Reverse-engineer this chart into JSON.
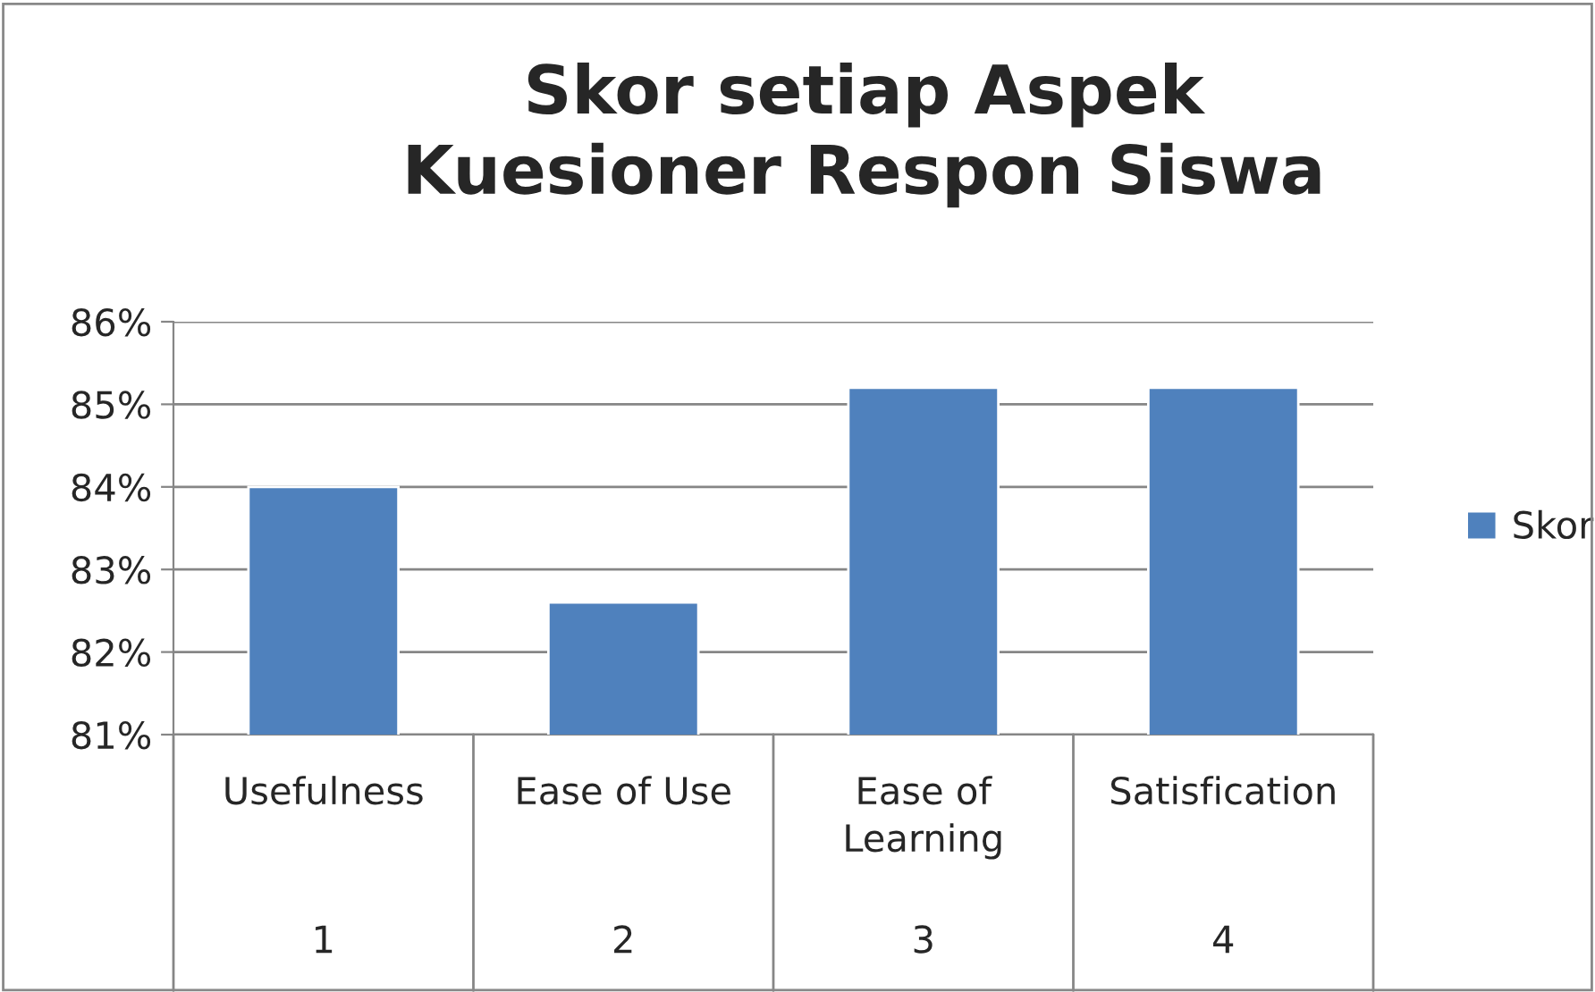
{
  "chart_data": {
    "type": "bar",
    "title": "Skor setiap Aspek\nKuesioner Respon Siswa",
    "categories": [
      "Usefulness",
      "Ease of Use",
      "Ease of\nLearning",
      "Satisfication"
    ],
    "series": [
      {
        "name": "Skor",
        "color": "#4f81bd",
        "values": [
          84,
          82.6,
          85.2,
          85.2
        ]
      }
    ],
    "annotations": [
      "1",
      "2",
      "3",
      "4"
    ],
    "ylim": [
      81,
      86
    ],
    "yticks": [
      {
        "value": 81,
        "label": "81%"
      },
      {
        "value": 82,
        "label": "82%"
      },
      {
        "value": 83,
        "label": "83%"
      },
      {
        "value": 84,
        "label": "84%"
      },
      {
        "value": 85,
        "label": "85%"
      },
      {
        "value": 86,
        "label": "86%"
      }
    ],
    "grid": "y",
    "legend": "right"
  }
}
